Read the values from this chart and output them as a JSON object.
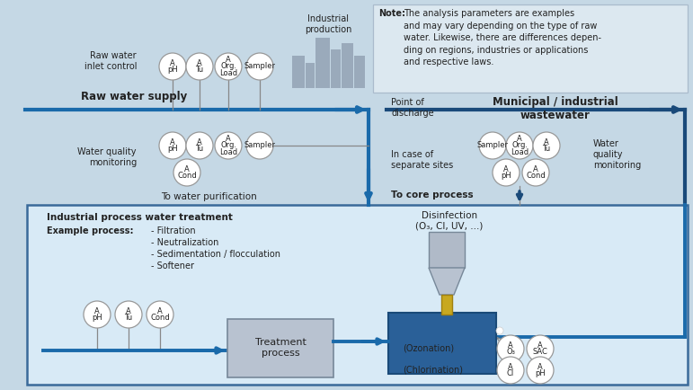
{
  "bg": "#c5d8e5",
  "note_bg": "#dce8f0",
  "inner_bg": "#d8eaf6",
  "circle_fill": "#ffffff",
  "circle_edge": "#999999",
  "blue_arrow": "#1a6aaa",
  "dark_arrow": "#1a4a7a",
  "grey_line": "#888888",
  "treatment_fill": "#b8c2d0",
  "tank_fill": "#2a6098",
  "factory_fill": "#9aaabb",
  "text_color": "#222222",
  "note_bold": "Note:",
  "note_body": "The analysis parameters are examples\nand may vary depending on the type of raw\nwater. Likewise, there are differences depen-\nding on regions, industries or applications\nand respective laws.",
  "raw_water_label": "Raw water supply",
  "municipal_label": "Municipal / industrial\nwastewater",
  "point_discharge": "Point of\ndischarge",
  "ind_production": "Industrial\nproduction",
  "raw_inlet": "Raw water\ninlet control",
  "wq_monitoring_left": "Water quality\nmonitoring",
  "wq_monitoring_right": "Water\nquality\nmonitoring",
  "to_purification": "To water purification",
  "in_case": "In case of\nseparate sites",
  "to_core": "To core process",
  "ind_process_title": "Industrial process water treatment",
  "example_process": "Example process:",
  "processes": [
    "- Filtration",
    "- Neutralization",
    "- Sedimentation / flocculation",
    "- Softener"
  ],
  "disinfection": "Disinfection\n(O₃, Cl, UV, ...)",
  "ozonation": "(Ozonation)",
  "chlorination": "(Chlorination)",
  "treatment_process": "Treatment\nprocess"
}
